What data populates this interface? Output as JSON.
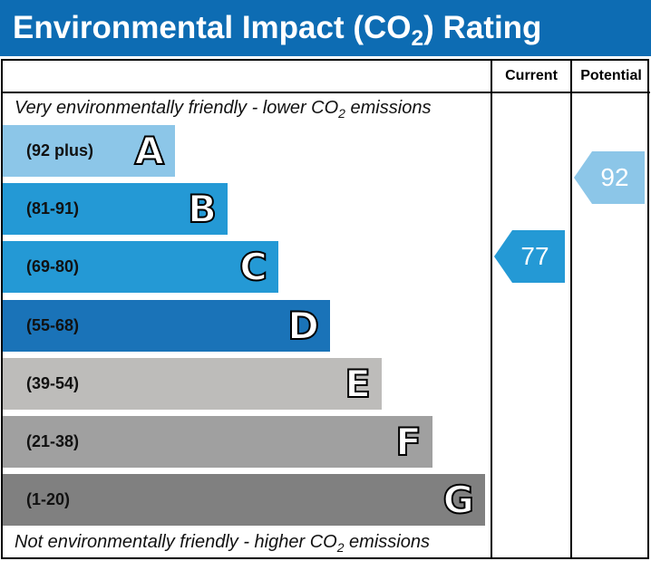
{
  "title": "Environmental Impact (CO2) Rating",
  "columns": {
    "current": "Current",
    "potential": "Potential"
  },
  "top_note": "Very environmentally friendly - lower CO2 emissions",
  "bottom_note": "Not environmentally friendly - higher CO2 emissions",
  "bands": [
    {
      "letter": "A",
      "range": "(92 plus)",
      "color": "#8cc6e8"
    },
    {
      "letter": "B",
      "range": "(81-91)",
      "color": "#2499d5"
    },
    {
      "letter": "C",
      "range": "(69-80)",
      "color": "#2499d5"
    },
    {
      "letter": "D",
      "range": "(55-68)",
      "color": "#1a73b8"
    },
    {
      "letter": "E",
      "range": "(39-54)",
      "color": "#bdbcba"
    },
    {
      "letter": "F",
      "range": "(21-38)",
      "color": "#a0a0a0"
    },
    {
      "letter": "G",
      "range": "(1-20)",
      "color": "#808080"
    }
  ],
  "current": {
    "value": "77",
    "band": "C",
    "color": "#2499d5"
  },
  "potential": {
    "value": "92",
    "band": "A",
    "color": "#8cc6e8"
  }
}
